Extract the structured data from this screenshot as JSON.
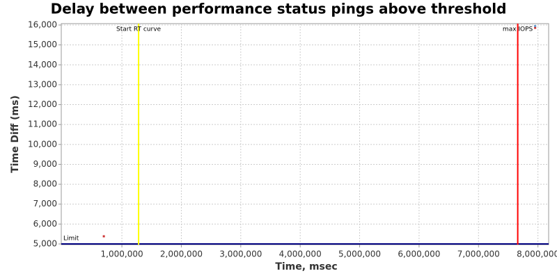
{
  "chart_data": {
    "type": "scatter",
    "title": "Delay between performance status pings above threshold",
    "x_label": "Time, msec",
    "y_label": "Time Diff (ms)",
    "x": [
      696000,
      7953000,
      7953000
    ],
    "values": [
      5384,
      15860,
      15950
    ],
    "colors": [
      "#cc3333",
      "#cc3333",
      "#6699cc"
    ],
    "xlim": [
      -20000,
      8180000
    ],
    "ylim": [
      4965,
      16070
    ],
    "xticks": [
      {
        "value": 1000000,
        "label": "1,000,000"
      },
      {
        "value": 2000000,
        "label": "2,000,000"
      },
      {
        "value": 3000000,
        "label": "3,000,000"
      },
      {
        "value": 4000000,
        "label": "4,000,000"
      },
      {
        "value": 5000000,
        "label": "5,000,000"
      },
      {
        "value": 6000000,
        "label": "6,000,000"
      },
      {
        "value": 7000000,
        "label": "7,000,000"
      },
      {
        "value": 8000000,
        "label": "8,000,000"
      }
    ],
    "yticks": [
      {
        "value": 5000,
        "label": "5,000"
      },
      {
        "value": 6000,
        "label": "6,000"
      },
      {
        "value": 7000,
        "label": "7,000"
      },
      {
        "value": 8000,
        "label": "8,000"
      },
      {
        "value": 9000,
        "label": "9,000"
      },
      {
        "value": 10000,
        "label": "10,000"
      },
      {
        "value": 11000,
        "label": "11,000"
      },
      {
        "value": 12000,
        "label": "12,000"
      },
      {
        "value": 13000,
        "label": "13,000"
      },
      {
        "value": 14000,
        "label": "14,000"
      },
      {
        "value": 15000,
        "label": "15,000"
      },
      {
        "value": 16000,
        "label": "16,000"
      }
    ],
    "grid": true,
    "markers": [
      {
        "label": "Start RT curve",
        "x": 1281000,
        "color": "#ffff00"
      },
      {
        "label": "max IOPS",
        "x": 7660000,
        "color": "#ff0000"
      }
    ],
    "threshold": {
      "label": "Limit",
      "value": 5000,
      "color": "#000080"
    }
  }
}
